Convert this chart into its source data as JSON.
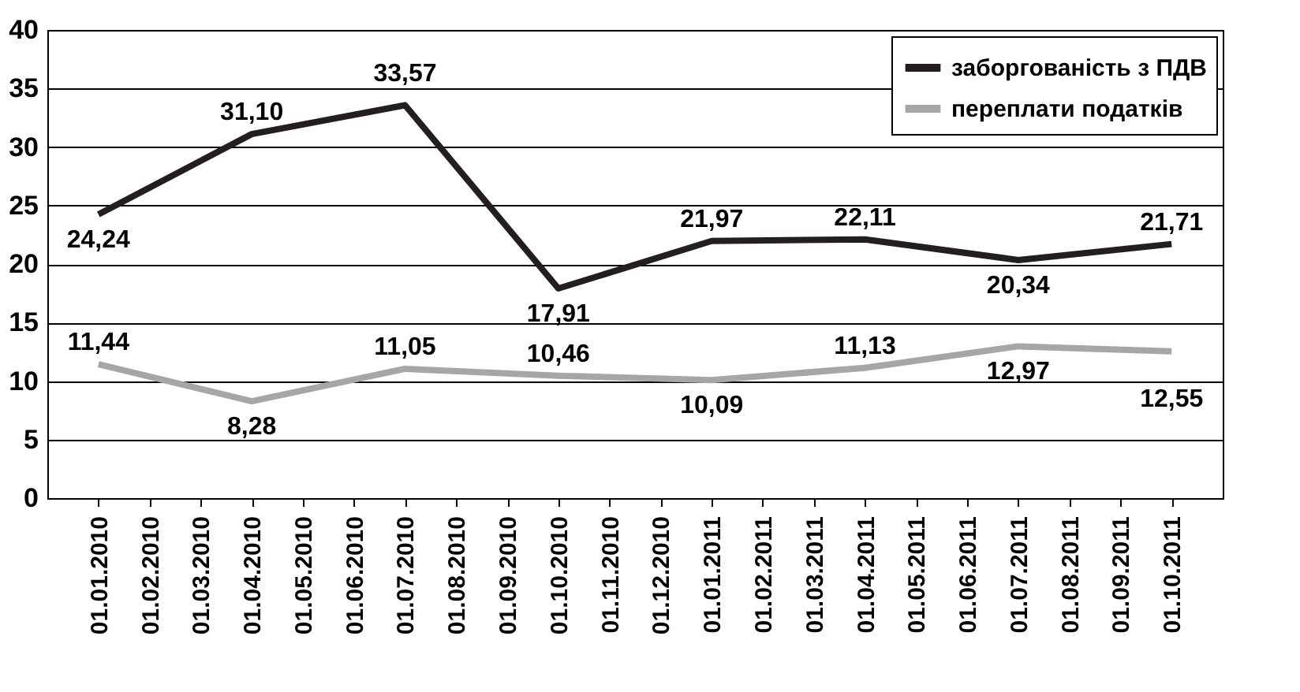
{
  "chart_data": {
    "type": "line",
    "categories": [
      "01.01.2010",
      "01.02.2010",
      "01.03.2010",
      "01.04.2010",
      "01.05.2010",
      "01.06.2010",
      "01.07.2010",
      "01.08.2010",
      "01.09.2010",
      "01.10.2010",
      "01.11.2010",
      "01.12.2010",
      "01.01.2011",
      "01.02.2011",
      "01.03.2011",
      "01.04.2011",
      "01.05.2011",
      "01.06.2011",
      "01.07.2011",
      "01.08.2011",
      "01.09.2011",
      "01.10.2011"
    ],
    "series": [
      {
        "name": "заборгованість з ПДВ",
        "color": "#231f20",
        "x": [
          "01.01.2010",
          "01.04.2010",
          "01.07.2010",
          "01.10.2010",
          "01.01.2011",
          "01.04.2011",
          "01.07.2011",
          "01.10.2011"
        ],
        "values": [
          24.24,
          31.1,
          33.57,
          17.91,
          21.97,
          22.11,
          20.34,
          21.71
        ],
        "value_labels": [
          "24,24",
          "31,10",
          "33,57",
          "17,91",
          "21,97",
          "22,11",
          "20,34",
          "21,71"
        ]
      },
      {
        "name": "переплати податків",
        "color": "#a6a6a6",
        "x": [
          "01.01.2010",
          "01.04.2010",
          "01.07.2010",
          "01.10.2010",
          "01.01.2011",
          "01.04.2011",
          "01.07.2011",
          "01.10.2011"
        ],
        "values": [
          11.44,
          8.28,
          11.05,
          10.46,
          10.09,
          11.13,
          12.97,
          12.55
        ],
        "value_labels": [
          "11,44",
          "8,28",
          "11,05",
          "10,46",
          "10,09",
          "11,13",
          "12,97",
          "12,55"
        ]
      }
    ],
    "ylim": [
      0,
      40
    ],
    "yticks": [
      0,
      5,
      10,
      15,
      20,
      25,
      30,
      35,
      40
    ],
    "grid": "y",
    "legend": "top right",
    "line_style": "solid",
    "marker": "none"
  }
}
